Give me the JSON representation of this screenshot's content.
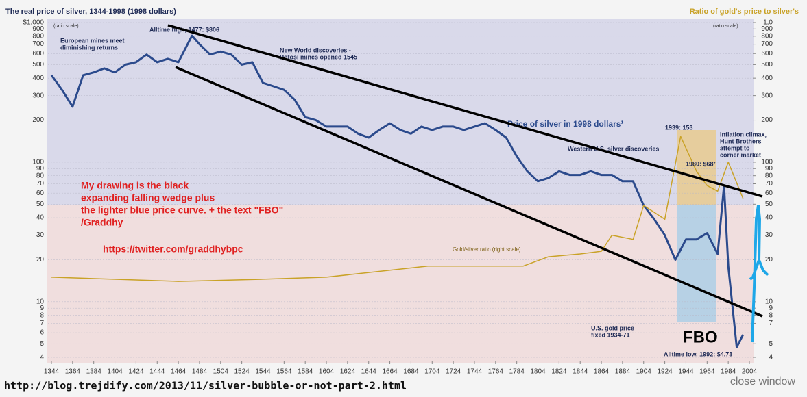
{
  "chart_data": {
    "type": "line",
    "title": "The real price of silver, 1344-1998 (1998 dollars)",
    "right_title": "Ratio of gold's price to silver's",
    "left_scale_note": "(ratio scale)",
    "right_scale_note": "(ratio scale)",
    "xlim": [
      1344,
      2004
    ],
    "xticks": [
      1344,
      1364,
      1384,
      1404,
      1424,
      1444,
      1464,
      1484,
      1504,
      1524,
      1544,
      1564,
      1584,
      1604,
      1624,
      1644,
      1664,
      1684,
      1704,
      1724,
      1744,
      1764,
      1784,
      1804,
      1824,
      1844,
      1864,
      1884,
      1904,
      1924,
      1944,
      1964,
      1984,
      2004
    ],
    "ylim": [
      4,
      1000
    ],
    "log_scale": true,
    "grid": true,
    "yticks": [
      4,
      5,
      6,
      7,
      8,
      9,
      10,
      20,
      30,
      40,
      50,
      60,
      70,
      80,
      90,
      100,
      200,
      300,
      400,
      500,
      600,
      700,
      800,
      900,
      {
        "value": 1000,
        "label": "$1,000"
      }
    ],
    "y2lim": [
      4,
      1000
    ],
    "y2ticks": [
      4,
      5,
      7,
      8,
      9,
      10,
      20,
      30,
      40,
      50,
      60,
      70,
      80,
      90,
      100,
      200,
      300,
      400,
      500,
      600,
      700,
      800,
      900,
      {
        "value": 1000,
        "label": "1,0"
      }
    ],
    "series": [
      {
        "name": "Price of silver in 1998 dollars¹",
        "color": "#2b4a8c",
        "x": [
          1344,
          1354,
          1364,
          1374,
          1384,
          1394,
          1404,
          1414,
          1424,
          1434,
          1444,
          1454,
          1464,
          1474,
          1477,
          1484,
          1494,
          1504,
          1514,
          1524,
          1534,
          1544,
          1554,
          1564,
          1574,
          1584,
          1594,
          1604,
          1614,
          1624,
          1634,
          1644,
          1654,
          1664,
          1674,
          1684,
          1694,
          1704,
          1714,
          1724,
          1734,
          1744,
          1754,
          1764,
          1774,
          1784,
          1794,
          1804,
          1814,
          1824,
          1834,
          1844,
          1854,
          1864,
          1874,
          1884,
          1894,
          1904,
          1914,
          1924,
          1934,
          1944,
          1954,
          1964,
          1974,
          1980,
          1984,
          1992,
          1998
        ],
        "values": [
          420,
          330,
          250,
          420,
          440,
          470,
          440,
          500,
          520,
          590,
          520,
          550,
          520,
          730,
          806,
          700,
          590,
          620,
          590,
          500,
          520,
          370,
          350,
          330,
          280,
          210,
          200,
          180,
          180,
          180,
          160,
          150,
          170,
          190,
          170,
          160,
          180,
          170,
          180,
          180,
          170,
          180,
          190,
          170,
          150,
          110,
          86,
          73,
          77,
          86,
          81,
          81,
          86,
          81,
          81,
          73,
          73,
          49,
          39,
          30,
          20,
          28,
          28,
          31,
          22,
          68,
          18,
          4.73,
          5.8
        ]
      },
      {
        "name": "Gold/silver ratio (right scale)",
        "color": "#c9a227",
        "axis": "y2",
        "x": [
          1344,
          1464,
          1544,
          1604,
          1700,
          1790,
          1814,
          1844,
          1864,
          1874,
          1894,
          1904,
          1924,
          1939,
          1954,
          1964,
          1974,
          1984,
          1998
        ],
        "values": [
          15,
          14,
          14.5,
          15,
          18,
          18,
          21,
          22,
          23,
          30,
          28,
          49,
          39,
          153,
          86,
          68,
          62,
          100,
          55
        ]
      }
    ],
    "annotations": [
      "Alltime high, 1477: $806",
      "European mines meet",
      "diminishing returns",
      "New World discoveries -",
      "Potosí mines opened 1545",
      "Western U.S. silver discoveries",
      "1939: 153",
      "Inflation climax,",
      "Hunt Brothers",
      "attempt to",
      "corner market",
      "1980: $68²",
      "U.S. gold price",
      "fixed 1934-71",
      "Alltime low, 1992: $4.73"
    ],
    "note_lines": [
      "My drawing is the black",
      "expanding falling wedge plus",
      "the lighter blue price curve. + the text \"FBO\"",
      "/Graddhy"
    ],
    "twitter": "https://twitter.com/graddhybpc",
    "fbo": "FBO",
    "source_url": "http://blog.trejdify.com/2013/11/silver-bubble-or-not-part-2.html",
    "close": "close window"
  }
}
